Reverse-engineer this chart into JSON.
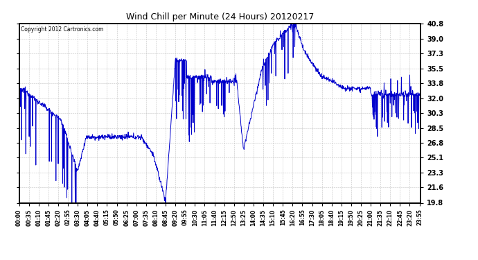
{
  "title": "Wind Chill per Minute (24 Hours) 20120217",
  "copyright_text": "Copyright 2012 Cartronics.com",
  "line_color": "#0000cc",
  "background_color": "#ffffff",
  "plot_bg_color": "#ffffff",
  "grid_color": "#aaaaaa",
  "yticks": [
    19.8,
    21.6,
    23.3,
    25.1,
    26.8,
    28.5,
    30.3,
    32.0,
    33.8,
    35.5,
    37.3,
    39.0,
    40.8
  ],
  "ylim": [
    19.8,
    40.8
  ],
  "total_minutes": 1440,
  "xtick_interval": 35,
  "xtick_labels": [
    "00:00",
    "00:35",
    "01:10",
    "01:45",
    "02:20",
    "02:55",
    "03:30",
    "04:05",
    "04:40",
    "05:15",
    "05:50",
    "06:25",
    "07:00",
    "07:35",
    "08:10",
    "08:45",
    "09:20",
    "09:55",
    "10:30",
    "11:05",
    "11:40",
    "12:15",
    "12:50",
    "13:25",
    "14:00",
    "14:35",
    "15:10",
    "15:45",
    "16:20",
    "16:55",
    "17:30",
    "18:05",
    "18:40",
    "19:15",
    "19:50",
    "20:25",
    "21:00",
    "21:35",
    "22:10",
    "22:45",
    "23:20",
    "23:55"
  ]
}
